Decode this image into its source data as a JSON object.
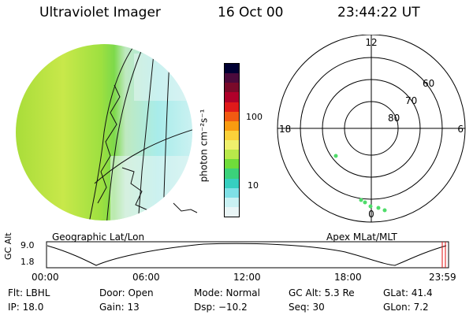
{
  "header": {
    "instrument": "Ultraviolet Imager",
    "date": "16 Oct 00",
    "time": "23:44:22 UT"
  },
  "colorbar": {
    "unit_label": "photon cm⁻²s⁻¹",
    "ticks": [
      "100",
      "10"
    ],
    "colors": [
      "#000033",
      "#4b0a3c",
      "#7a0a2a",
      "#b0002a",
      "#e01a1a",
      "#f15a12",
      "#f99b10",
      "#fbd13a",
      "#eff06c",
      "#b8e94a",
      "#6fdc3a",
      "#3bd27a",
      "#36cfc0",
      "#7fe0e6",
      "#c9f1f3",
      "#eaf6f7"
    ]
  },
  "polar_plot": {
    "mlt_labels": {
      "top": "12",
      "left": "18",
      "right": "6",
      "bottom": "0"
    },
    "lat_labels": [
      "60",
      "70",
      "80"
    ],
    "caption": "Apex MLat/MLT"
  },
  "image_panel": {
    "caption": "Geographic Lat/Lon"
  },
  "timeline": {
    "axis_label": "GC Alt",
    "ticks_y": [
      "9.0",
      "1.8"
    ],
    "ticks_x": [
      "00:00",
      "06:00",
      "12:00",
      "18:00",
      "23:59"
    ],
    "marker_color": "#e01010"
  },
  "footer": {
    "row1": [
      "Flt: LBHL",
      "Door: Open",
      "Mode: Normal",
      "GC Alt: 5.3 Re",
      "GLat:  41.4"
    ],
    "row2": [
      "IP: 18.0",
      "Gain: 13",
      "Dsp:  −10.2",
      "Seq: 30",
      "GLon:   7.2"
    ]
  }
}
